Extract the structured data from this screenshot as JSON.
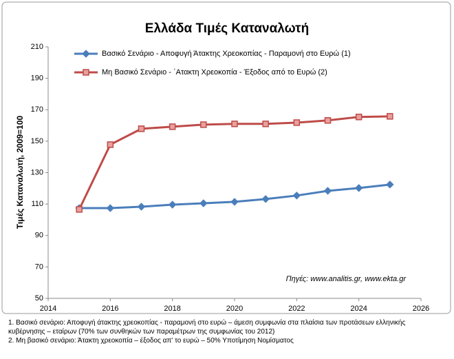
{
  "chart_data": {
    "type": "line",
    "title": "Ελλάδα Τιμές Καταναλωτή",
    "y_label": "Τιμές Καταναλωτή, 2009=100",
    "annotation": "Πηγές: www.analitis.gr,  www.ekta.gr",
    "x": [
      2015,
      2016,
      2017,
      2018,
      2019,
      2020,
      2021,
      2022,
      2023,
      2024,
      2025
    ],
    "series": [
      {
        "name": "Βασικό Σενάριο - Αποφυγή Άτακτης Χρεοκοπίας - Παραμονή στο Ευρώ (1)",
        "color": "#4a7ebb",
        "marker": "diamond",
        "values": [
          107.4,
          107.4,
          108.3,
          109.6,
          110.5,
          111.4,
          113.2,
          115.4,
          118.4,
          120.2,
          122.4
        ]
      },
      {
        "name": "Μη Βασικό Σενάριο - ΄Ατακτη Χρεοκοπία - Έξοδος από το Ευρώ (2)",
        "color": "#be4b48",
        "marker": "square",
        "values": [
          106.6,
          147.8,
          157.9,
          159.2,
          160.5,
          161,
          161,
          161.8,
          163.2,
          165.4,
          165.8
        ]
      }
    ],
    "xlim": [
      2014,
      2026
    ],
    "xticks": [
      2014,
      2016,
      2018,
      2020,
      2022,
      2024,
      2026
    ],
    "ylim": [
      50,
      210
    ],
    "yticks": [
      50,
      70,
      90,
      110,
      130,
      150,
      170,
      190,
      210
    ],
    "grid": false
  },
  "footnotes": [
    "1. Βασικό σενάριο: Αποφυγή άτακτης χρεοκοπίας - παραμονή στο ευρώ – άμεση συμφωνία  στα πλαίσια των προτάσεων ελληνικής κυβέρνησης – εταίρων (70% των συνθηκών  των παραμέτρων της συμφωνίας του 2012)",
    "2. Μη βασικό  σενάριο: Άτακτη χρεοκοπία – έξοδος απ' το ευρώ – 50% Υποτίμηση Νομίσματος"
  ]
}
